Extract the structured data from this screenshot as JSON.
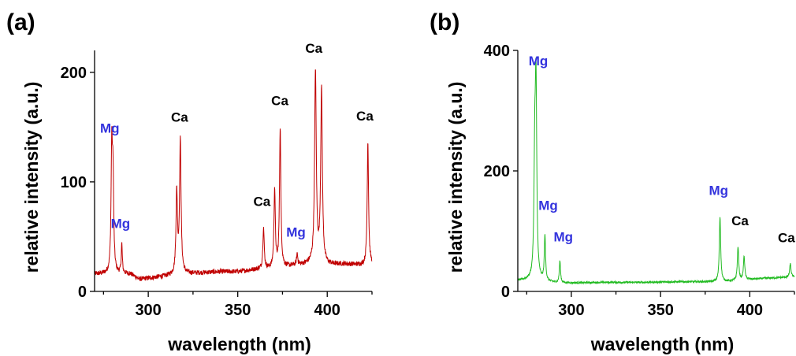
{
  "chart_data": [
    {
      "type": "line",
      "panel_label": "(a)",
      "xlabel": "wavelength (nm)",
      "ylabel": "relative intensity (a.u.)",
      "xlim": [
        270,
        425
      ],
      "ylim": [
        0,
        220
      ],
      "xticks": [
        300,
        350,
        400
      ],
      "yticks": [
        0,
        100,
        200
      ],
      "color": "#c00000",
      "baseline": [
        [
          270,
          16
        ],
        [
          290,
          16
        ],
        [
          295,
          11
        ],
        [
          300,
          12
        ],
        [
          310,
          14
        ],
        [
          320,
          16
        ],
        [
          330,
          17
        ],
        [
          340,
          18
        ],
        [
          350,
          18
        ],
        [
          360,
          20
        ],
        [
          370,
          21
        ],
        [
          380,
          23
        ],
        [
          390,
          25
        ],
        [
          400,
          24
        ],
        [
          410,
          25
        ],
        [
          420,
          24
        ],
        [
          425,
          25
        ]
      ],
      "peaks": [
        {
          "x": 279.6,
          "y": 126,
          "w": 0.45
        },
        {
          "x": 280.3,
          "y": 96,
          "w": 0.45
        },
        {
          "x": 285.2,
          "y": 43,
          "w": 0.35
        },
        {
          "x": 315.9,
          "y": 89,
          "w": 0.5
        },
        {
          "x": 317.9,
          "y": 136,
          "w": 0.5
        },
        {
          "x": 364.4,
          "y": 58,
          "w": 0.45
        },
        {
          "x": 370.6,
          "y": 93,
          "w": 0.45
        },
        {
          "x": 373.7,
          "y": 149,
          "w": 0.45
        },
        {
          "x": 383.2,
          "y": 34,
          "w": 0.4
        },
        {
          "x": 393.4,
          "y": 201,
          "w": 0.55
        },
        {
          "x": 396.8,
          "y": 183,
          "w": 0.55
        },
        {
          "x": 422.7,
          "y": 137,
          "w": 0.45
        }
      ],
      "annotations": [
        {
          "text": "Mg",
          "x": 278.5,
          "y": 145,
          "color": "#3333dd"
        },
        {
          "text": "Mg",
          "x": 284.5,
          "y": 58,
          "color": "#3333dd"
        },
        {
          "text": "Ca",
          "x": 317.5,
          "y": 155,
          "color": "#000000"
        },
        {
          "text": "Ca",
          "x": 363.5,
          "y": 78,
          "color": "#000000"
        },
        {
          "text": "Ca",
          "x": 373.5,
          "y": 170,
          "color": "#000000"
        },
        {
          "text": "Mg",
          "x": 382.5,
          "y": 50,
          "color": "#3333dd"
        },
        {
          "text": "Ca",
          "x": 392.5,
          "y": 218,
          "color": "#000000"
        },
        {
          "text": "Ca",
          "x": 421,
          "y": 156,
          "color": "#000000"
        }
      ]
    },
    {
      "type": "line",
      "panel_label": "(b)",
      "xlabel": "wavelength (nm)",
      "ylabel": "relative intensity (a.u.)",
      "xlim": [
        270,
        425
      ],
      "ylim": [
        0,
        400
      ],
      "xticks": [
        300,
        350,
        400
      ],
      "yticks": [
        0,
        200,
        400
      ],
      "color": "#22bb22",
      "baseline": [
        [
          270,
          18
        ],
        [
          276,
          19
        ],
        [
          282,
          17
        ],
        [
          286,
          16
        ],
        [
          292,
          14
        ],
        [
          300,
          14
        ],
        [
          320,
          15
        ],
        [
          340,
          15
        ],
        [
          360,
          16
        ],
        [
          380,
          16
        ],
        [
          390,
          17
        ],
        [
          400,
          20
        ],
        [
          410,
          22
        ],
        [
          425,
          24
        ]
      ],
      "peaks": [
        {
          "x": 279.5,
          "y": 200,
          "w": 0.5
        },
        {
          "x": 280.2,
          "y": 325,
          "w": 0.5
        },
        {
          "x": 285.2,
          "y": 92,
          "w": 0.4
        },
        {
          "x": 293.6,
          "y": 50,
          "w": 0.4
        },
        {
          "x": 383.3,
          "y": 124,
          "w": 0.45
        },
        {
          "x": 393.4,
          "y": 74,
          "w": 0.45
        },
        {
          "x": 396.8,
          "y": 58,
          "w": 0.45
        },
        {
          "x": 422.7,
          "y": 46,
          "w": 0.45
        }
      ],
      "annotations": [
        {
          "text": "Mg",
          "x": 281.5,
          "y": 375,
          "color": "#3333dd"
        },
        {
          "text": "Mg",
          "x": 287,
          "y": 135,
          "color": "#3333dd"
        },
        {
          "text": "Mg",
          "x": 295.5,
          "y": 83,
          "color": "#3333dd"
        },
        {
          "text": "Mg",
          "x": 382.5,
          "y": 160,
          "color": "#3333dd"
        },
        {
          "text": "Ca",
          "x": 394.5,
          "y": 110,
          "color": "#000000"
        },
        {
          "text": "Ca",
          "x": 420.5,
          "y": 82,
          "color": "#000000"
        }
      ]
    }
  ]
}
